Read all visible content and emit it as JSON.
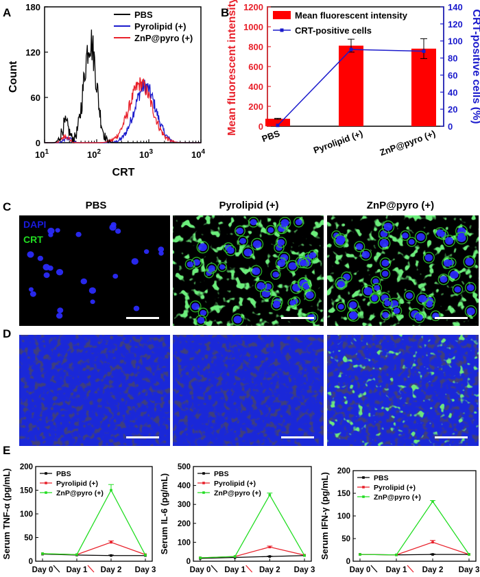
{
  "panel_letters": [
    "A",
    "B",
    "C",
    "D",
    "E"
  ],
  "panelA": {
    "ylabel": "Count",
    "xlabel": "CRT",
    "yticks": [
      "0",
      "60",
      "120",
      "180"
    ],
    "xticks": [
      {
        "base": "10",
        "exp": "1"
      },
      {
        "base": "10",
        "exp": "2"
      },
      {
        "base": "10",
        "exp": "3"
      },
      {
        "base": "10",
        "exp": "4"
      }
    ],
    "legend": [
      "PBS",
      "Pyrolipid (+)",
      "ZnP@pyro (+)"
    ],
    "colors": [
      "#000000",
      "#1a1acc",
      "#e8202a"
    ]
  },
  "panelB": {
    "ylabel_left": "Mean fluorescent intensity",
    "ylabel_right": "CRT-positive cells (%)",
    "yticks_left": [
      "0",
      "200",
      "400",
      "600",
      "800",
      "1000",
      "1200"
    ],
    "yticks_right": [
      "0",
      "20",
      "40",
      "60",
      "80",
      "100",
      "120",
      "140"
    ],
    "legend": [
      "Mean fluorescent intensity",
      "CRT-positive cells"
    ],
    "bar_color": "#ff0000",
    "line_color": "#1a1acc"
  },
  "panelC": {
    "headers": [
      "PBS",
      "Pyrolipid (+)",
      "ZnP@pyro (+)"
    ],
    "stain_labels": [
      "DAPI",
      "CRT"
    ]
  },
  "panelE": {
    "xlabels": [
      "Day 0",
      "Day 1",
      "Day 2",
      "Day 3"
    ],
    "legend": [
      "PBS",
      "Pyrolipid (+)",
      "ZnP@pyro (+)"
    ],
    "colors": [
      "#000000",
      "#e8202a",
      "#22dd22"
    ],
    "charts": [
      {
        "ylabel": "Serum TNF-α (pg/mL)",
        "yticks": [
          "0",
          "50",
          "100",
          "150",
          "200"
        ]
      },
      {
        "ylabel": "Serum IL-6 (pg/mL)",
        "yticks": [
          "0",
          "100",
          "200",
          "300",
          "400",
          "500"
        ]
      },
      {
        "ylabel": "Serum IFN-γ (pg/mL)",
        "yticks": [
          "0",
          "50",
          "100",
          "150",
          "200"
        ]
      }
    ]
  },
  "chart_data": [
    {
      "type": "line",
      "x_scale": "log",
      "xlim": [
        10,
        10000
      ],
      "ylim": [
        0,
        180
      ],
      "series": [
        {
          "name": "PBS",
          "peak_x": 75,
          "peak_y": 135
        },
        {
          "name": "Pyrolipid (+)",
          "peak_x": 850,
          "peak_y": 75
        },
        {
          "name": "ZnP@pyro (+)",
          "peak_x": 700,
          "peak_y": 78
        }
      ]
    },
    {
      "type": "bar",
      "categories": [
        "PBS",
        "Pyrolipid (+)",
        "ZnP@pyro (+)"
      ],
      "values": [
        75,
        810,
        780
      ],
      "errors": [
        5,
        65,
        100
      ],
      "ylim": [
        0,
        1200
      ],
      "line_series": {
        "name": "CRT-positive cells",
        "values": [
          1,
          90,
          88
        ],
        "ylim": [
          0,
          140
        ]
      }
    },
    {
      "type": "line",
      "categories": [
        "Day 0",
        "Day 1",
        "Day 2",
        "Day 3"
      ],
      "ylim": [
        0,
        200
      ],
      "series": [
        {
          "name": "PBS",
          "values": [
            15,
            13,
            12,
            12
          ]
        },
        {
          "name": "Pyrolipid (+)",
          "values": [
            16,
            14,
            40,
            14
          ]
        },
        {
          "name": "ZnP@pyro (+)",
          "values": [
            16,
            14,
            150,
            13
          ]
        }
      ],
      "errors_day2": [
        1,
        3,
        12
      ]
    },
    {
      "type": "line",
      "categories": [
        "Day 0",
        "Day 1",
        "Day 2",
        "Day 3"
      ],
      "ylim": [
        0,
        500
      ],
      "series": [
        {
          "name": "PBS",
          "values": [
            15,
            20,
            25,
            30
          ]
        },
        {
          "name": "Pyrolipid (+)",
          "values": [
            18,
            25,
            75,
            32
          ]
        },
        {
          "name": "ZnP@pyro (+)",
          "values": [
            18,
            25,
            350,
            30
          ]
        }
      ],
      "errors_day2": [
        2,
        5,
        10
      ]
    },
    {
      "type": "line",
      "categories": [
        "Day 0",
        "Day 1",
        "Day 2",
        "Day 3"
      ],
      "ylim": [
        0,
        200
      ],
      "series": [
        {
          "name": "PBS",
          "values": [
            15,
            14,
            15,
            15
          ]
        },
        {
          "name": "Pyrolipid (+)",
          "values": [
            15,
            14,
            42,
            15
          ]
        },
        {
          "name": "ZnP@pyro (+)",
          "values": [
            15,
            14,
            132,
            15
          ]
        }
      ],
      "errors_day2": [
        1,
        4,
        2
      ]
    }
  ]
}
